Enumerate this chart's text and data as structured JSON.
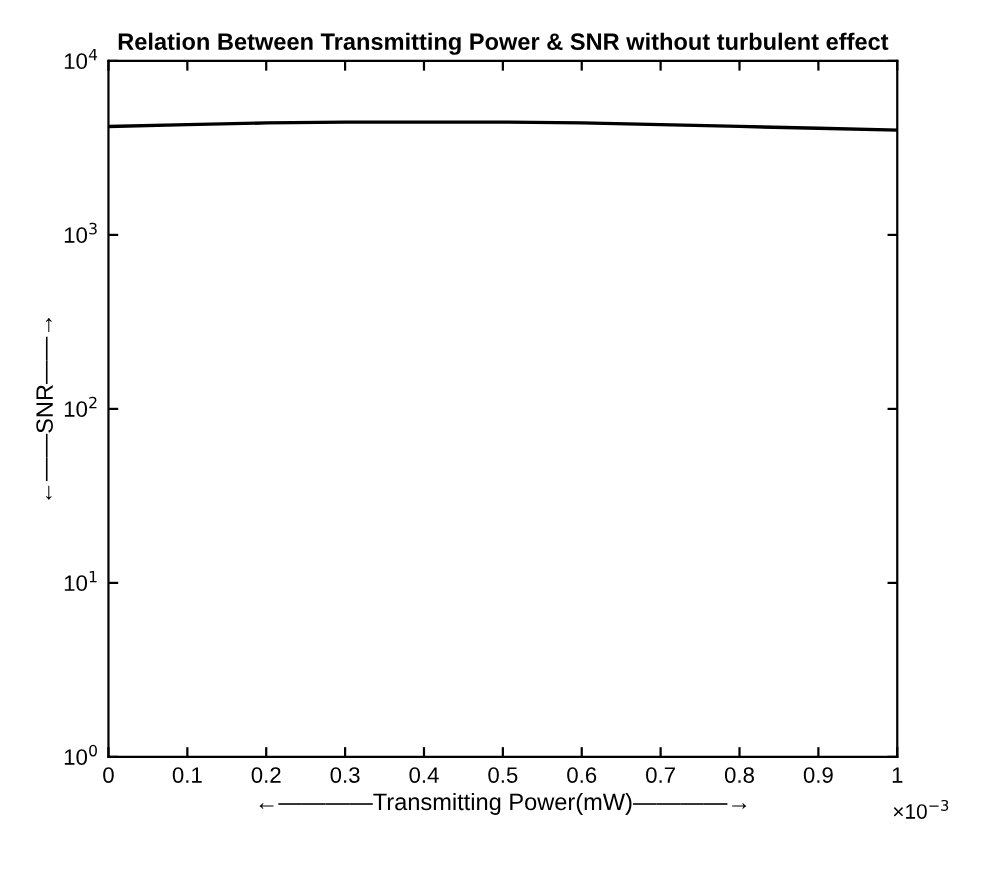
{
  "chart_data": {
    "type": "line",
    "title": "Relation Between Transmitting Power & SNR without turbulent effect",
    "xlabel": "←————Transmitting Power(mW)————→",
    "ylabel": "←——SNR——→",
    "x": [
      0,
      0.1,
      0.2,
      0.3,
      0.4,
      0.5,
      0.6,
      0.7,
      0.8,
      0.9,
      1
    ],
    "series": [
      {
        "color": "#000000",
        "values": [
          4200,
          4300,
          4400,
          4450,
          4450,
          4450,
          4400,
          4300,
          4200,
          4100,
          4000
        ]
      }
    ],
    "log": "y",
    "xlim": [
      0,
      1
    ],
    "xticks": [
      0,
      0.1,
      0.2,
      0.3,
      0.4,
      0.5,
      0.6,
      0.7,
      0.8,
      0.9,
      1
    ],
    "ylim": [
      1,
      10000
    ],
    "yticks": [
      {
        "value": 1,
        "label": "10$^{0}$"
      },
      {
        "value": 10,
        "label": "10$^{1}$"
      },
      {
        "value": 100,
        "label": "10$^{2}$"
      },
      {
        "value": 1000,
        "label": "10$^{3}$"
      },
      {
        "value": 10000,
        "label": "10$^{4}$"
      }
    ],
    "annotations": [
      "×10$^{−3}$"
    ],
    "grid": false,
    "legend": false,
    "marker": "none",
    "line_style": "solid"
  }
}
